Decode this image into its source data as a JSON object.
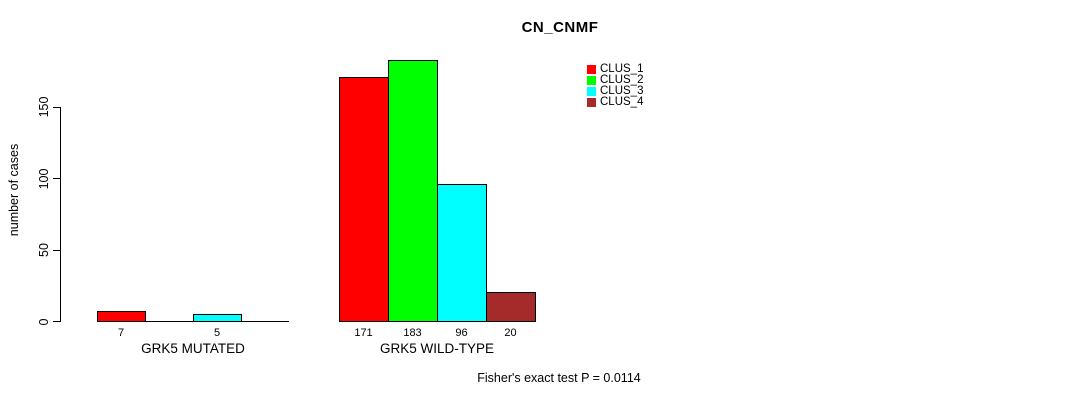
{
  "chart_data": {
    "type": "bar",
    "title": "CN_CNMF",
    "ylabel": "number of cases",
    "yticks": [
      0,
      50,
      100,
      150
    ],
    "ylim": [
      0,
      190
    ],
    "grid": false,
    "legend": {
      "position": "top-right",
      "entries": [
        {
          "label": "CLUS_1",
          "color": "#FF0000"
        },
        {
          "label": "CLUS_2",
          "color": "#00FF00"
        },
        {
          "label": "CLUS_3",
          "color": "#00FFFF"
        },
        {
          "label": "CLUS_4",
          "color": "#A52A2A"
        }
      ]
    },
    "groups": [
      {
        "label": "GRK5 MUTATED",
        "slots": 4,
        "bars": [
          {
            "cluster": "CLUS_1",
            "value": 7,
            "label": "7",
            "color": "#FF0000",
            "slot": 0
          },
          {
            "cluster": "CLUS_3",
            "value": 5,
            "label": "5",
            "color": "#00FFFF",
            "slot": 2
          }
        ]
      },
      {
        "label": "GRK5 WILD-TYPE",
        "slots": 4,
        "bars": [
          {
            "cluster": "CLUS_1",
            "value": 171,
            "label": "171",
            "color": "#FF0000",
            "slot": 0
          },
          {
            "cluster": "CLUS_2",
            "value": 183,
            "label": "183",
            "color": "#00FF00",
            "slot": 1
          },
          {
            "cluster": "CLUS_3",
            "value": 96,
            "label": "96",
            "color": "#00FFFF",
            "slot": 2
          },
          {
            "cluster": "CLUS_4",
            "value": 20,
            "label": "20",
            "color": "#A52A2A",
            "slot": 3
          }
        ]
      }
    ],
    "annotation": "Fisher's exact test P = 0.0114"
  }
}
